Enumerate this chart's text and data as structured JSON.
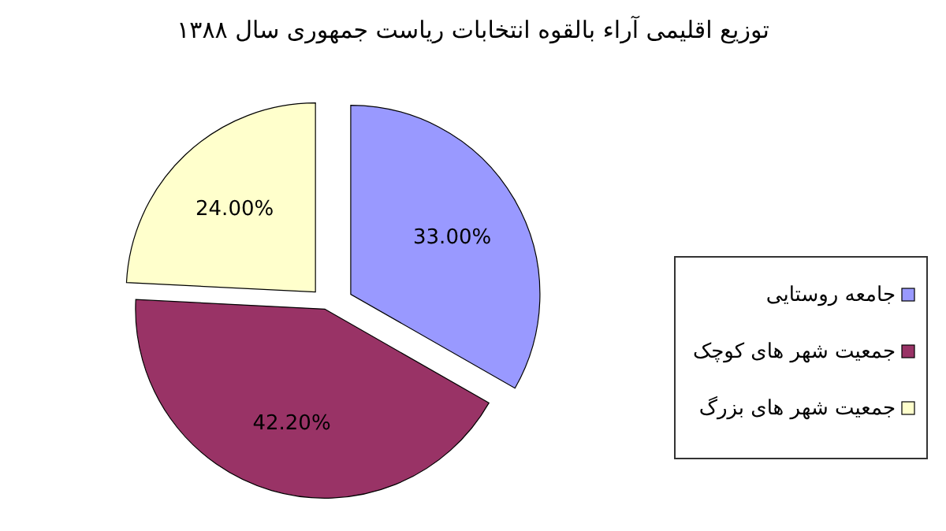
{
  "chart_data": {
    "type": "pie",
    "title": "توزیع اقلیمی آراء بالقوه انتخابات ریاست جمهوری سال ۱۳۸۸",
    "categories": [
      "جامعه روستایی",
      "جمعیت شهر های کوچک",
      "جمعیت شهر های بزرگ"
    ],
    "values": [
      33.0,
      42.2,
      24.0
    ],
    "value_labels": [
      "33.00%",
      "42.20%",
      "24.00%"
    ],
    "colors": [
      "#9999ff",
      "#993366",
      "#ffffcc"
    ],
    "legend": "right"
  }
}
